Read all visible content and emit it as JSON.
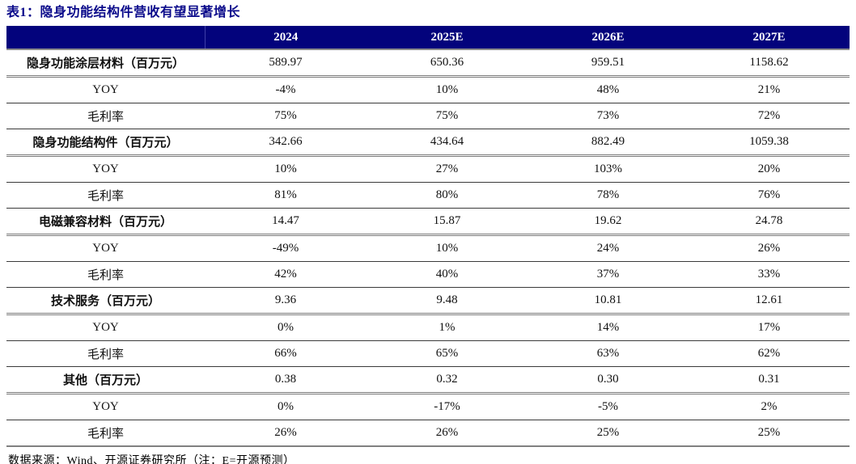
{
  "page": {
    "title": "表1：隐身功能结构件营收有望显著增长",
    "source_note": "数据来源：Wind、开源证券研究所（注：E=开源预测）"
  },
  "colors": {
    "header_bg": "#03037C",
    "header_text": "#FFFFFF",
    "title_text": "#0A0A8A",
    "row_border_thin": "#3A3A3A",
    "row_border_thick": "#808080"
  },
  "chart_data": {
    "type": "table",
    "title": "表1：隐身功能结构件营收有望显著增长",
    "columns": [
      "",
      "2024",
      "2025E",
      "2026E",
      "2027E"
    ],
    "rows": [
      {
        "label": "隐身功能涂层材料（百万元）",
        "bold": true,
        "values": [
          "589.97",
          "650.36",
          "959.51",
          "1158.62"
        ]
      },
      {
        "label": "YOY",
        "bold": false,
        "values": [
          "-4%",
          "10%",
          "48%",
          "21%"
        ]
      },
      {
        "label": "毛利率",
        "bold": false,
        "values": [
          "75%",
          "75%",
          "73%",
          "72%"
        ]
      },
      {
        "label": "隐身功能结构件（百万元）",
        "bold": true,
        "values": [
          "342.66",
          "434.64",
          "882.49",
          "1059.38"
        ]
      },
      {
        "label": "YOY",
        "bold": false,
        "values": [
          "10%",
          "27%",
          "103%",
          "20%"
        ]
      },
      {
        "label": "毛利率",
        "bold": false,
        "values": [
          "81%",
          "80%",
          "78%",
          "76%"
        ]
      },
      {
        "label": "电磁兼容材料（百万元）",
        "bold": true,
        "values": [
          "14.47",
          "15.87",
          "19.62",
          "24.78"
        ]
      },
      {
        "label": "YOY",
        "bold": false,
        "values": [
          "-49%",
          "10%",
          "24%",
          "26%"
        ]
      },
      {
        "label": "毛利率",
        "bold": false,
        "values": [
          "42%",
          "40%",
          "37%",
          "33%"
        ]
      },
      {
        "label": "技术服务（百万元）",
        "bold": true,
        "values": [
          "9.36",
          "9.48",
          "10.81",
          "12.61"
        ]
      },
      {
        "label": "YOY",
        "bold": false,
        "values": [
          "0%",
          "1%",
          "14%",
          "17%"
        ]
      },
      {
        "label": "毛利率",
        "bold": false,
        "values": [
          "66%",
          "65%",
          "63%",
          "62%"
        ]
      },
      {
        "label": "其他（百万元）",
        "bold": true,
        "values": [
          "0.38",
          "0.32",
          "0.30",
          "0.31"
        ]
      },
      {
        "label": "YOY",
        "bold": false,
        "values": [
          "0%",
          "-17%",
          "-5%",
          "2%"
        ]
      },
      {
        "label": "毛利率",
        "bold": false,
        "values": [
          "26%",
          "26%",
          "25%",
          "25%"
        ]
      }
    ],
    "source": "数据来源：Wind、开源证券研究所（注：E=开源预测）"
  }
}
